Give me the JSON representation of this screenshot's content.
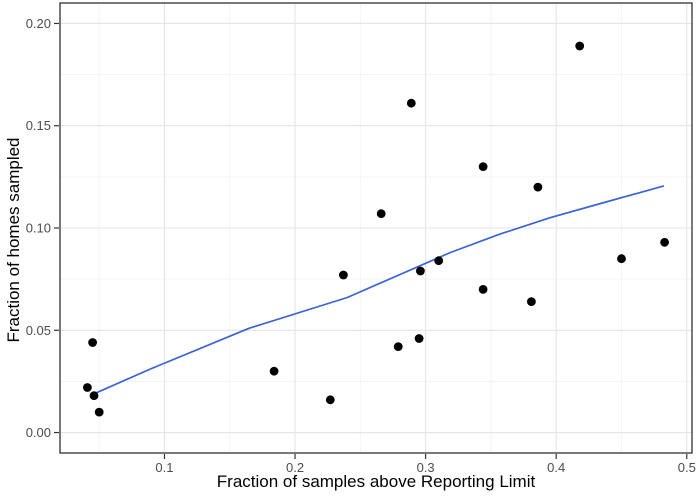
{
  "chart_data": {
    "type": "scatter",
    "title": "",
    "xlabel": "Fraction of samples above Reporting Limit",
    "ylabel": "Fraction of homes sampled",
    "xlim": [
      0.02,
      0.504
    ],
    "ylim": [
      -0.01,
      0.21
    ],
    "x_ticks": [
      0.1,
      0.2,
      0.3,
      0.4,
      0.5
    ],
    "x_tick_labels": [
      "0.1",
      "0.2",
      "0.3",
      "0.4",
      "0.5"
    ],
    "y_ticks": [
      0.0,
      0.05,
      0.1,
      0.15,
      0.2
    ],
    "y_tick_labels": [
      "0.00",
      "0.05",
      "0.10",
      "0.15",
      "0.20"
    ],
    "x_minor_ticks": [
      0.05,
      0.15,
      0.25,
      0.35,
      0.45
    ],
    "y_minor_ticks": [
      0.025,
      0.075,
      0.125,
      0.175
    ],
    "grid": "major+minor",
    "legend": "none",
    "points": [
      [
        0.045,
        0.044
      ],
      [
        0.041,
        0.022
      ],
      [
        0.046,
        0.018
      ],
      [
        0.05,
        0.01
      ],
      [
        0.184,
        0.03
      ],
      [
        0.227,
        0.016
      ],
      [
        0.237,
        0.077
      ],
      [
        0.266,
        0.107
      ],
      [
        0.279,
        0.042
      ],
      [
        0.289,
        0.161
      ],
      [
        0.295,
        0.046
      ],
      [
        0.296,
        0.079
      ],
      [
        0.31,
        0.084
      ],
      [
        0.344,
        0.13
      ],
      [
        0.344,
        0.07
      ],
      [
        0.381,
        0.064
      ],
      [
        0.386,
        0.12
      ],
      [
        0.418,
        0.189
      ],
      [
        0.45,
        0.085
      ],
      [
        0.483,
        0.093
      ]
    ],
    "smooth_line": {
      "points": [
        [
          0.048,
          0.0195
        ],
        [
          0.089,
          0.031
        ],
        [
          0.165,
          0.051
        ],
        [
          0.24,
          0.066
        ],
        [
          0.319,
          0.088
        ],
        [
          0.357,
          0.097
        ],
        [
          0.395,
          0.105
        ],
        [
          0.434,
          0.112
        ],
        [
          0.482,
          0.1205
        ]
      ]
    },
    "colors": {
      "point": "#000000",
      "line": "#3b62d9",
      "grid_major": "#e4e4e4",
      "grid_minor": "#f1f1f1",
      "panel_border": "#404040",
      "tick_mark": "#333333",
      "tick_label": "#4d4d4d",
      "axis_title": "#000000",
      "background": "#ffffff"
    }
  }
}
